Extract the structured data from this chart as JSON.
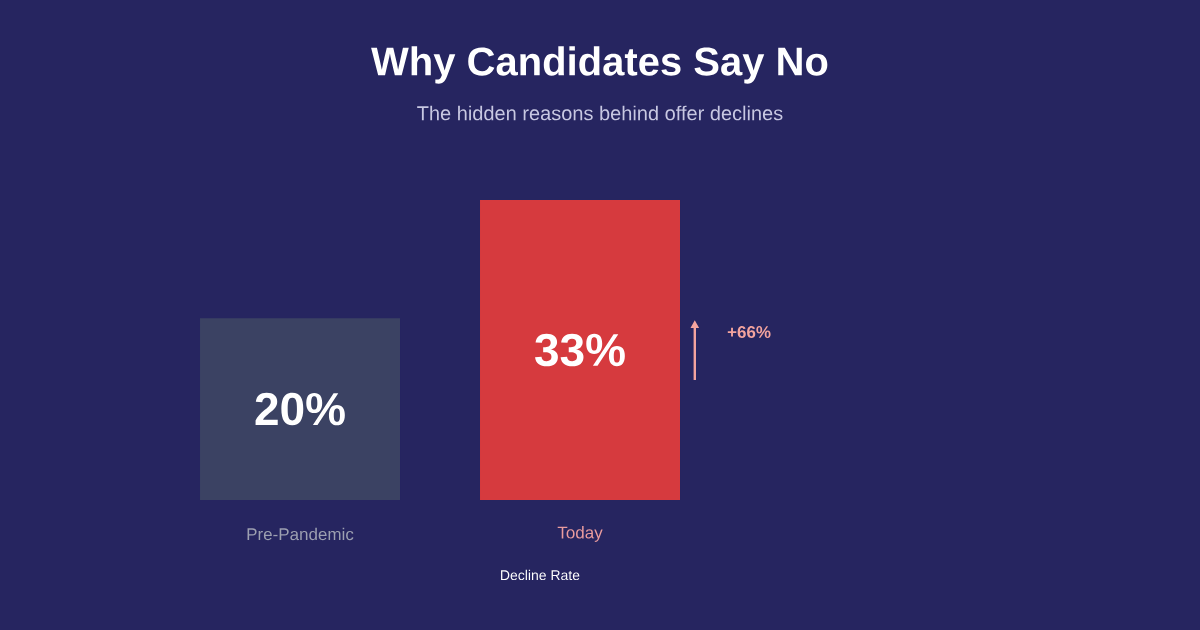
{
  "chart_data": {
    "type": "bar",
    "title": "Why Candidates Say No",
    "subtitle": "The hidden reasons behind offer declines",
    "xlabel": "Decline Rate",
    "categories": [
      "Pre-Pandemic",
      "Today"
    ],
    "values": [
      20,
      33
    ],
    "colors": [
      "#3b4263",
      "#d63a3e"
    ],
    "value_labels": [
      "20%",
      "33%"
    ],
    "annotations": [
      "+66%"
    ]
  }
}
